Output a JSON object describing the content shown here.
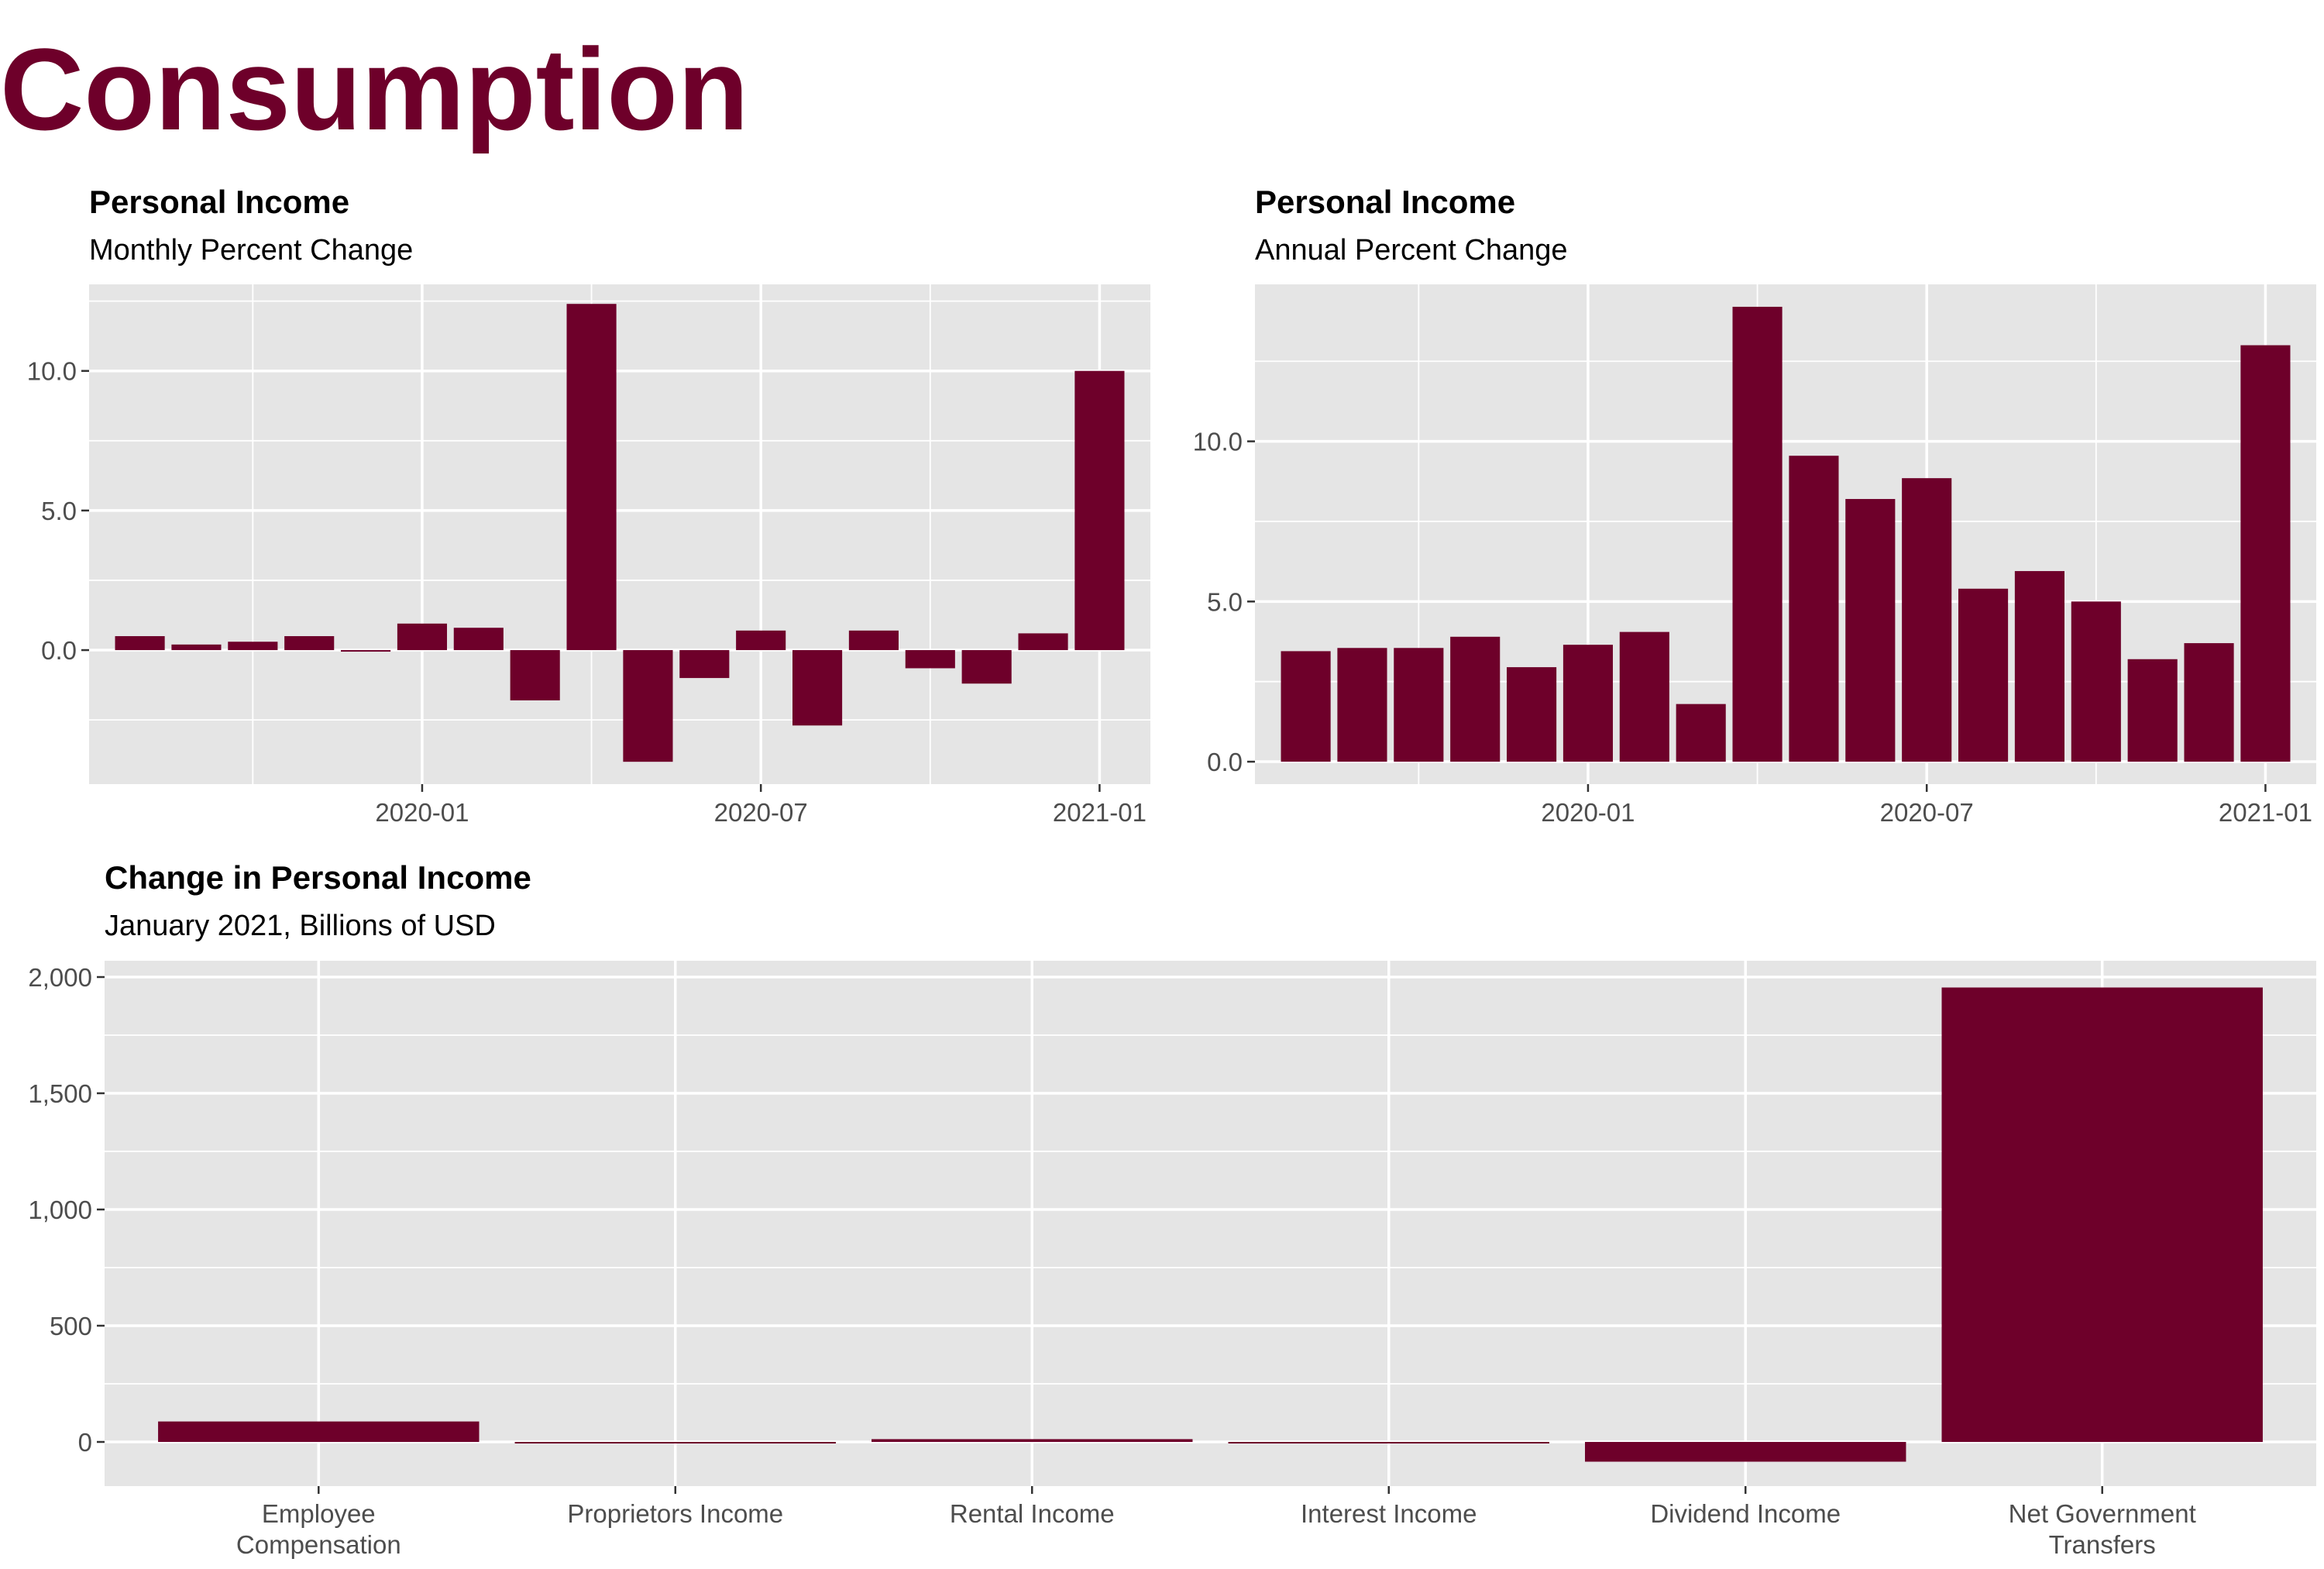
{
  "page_title": "Consumption",
  "colors": {
    "bar": "#6e002a",
    "panel": "#e5e5e5",
    "grid": "#ffffff",
    "tick_text": "#4d4d4d"
  },
  "chart_data": [
    {
      "type": "bar",
      "title": "Personal Income",
      "subtitle": "Monthly Percent Change",
      "x": [
        "2019-08",
        "2019-09",
        "2019-10",
        "2019-11",
        "2019-12",
        "2020-01",
        "2020-02",
        "2020-03",
        "2020-04",
        "2020-05",
        "2020-06",
        "2020-07",
        "2020-08",
        "2020-09",
        "2020-10",
        "2020-11",
        "2020-12",
        "2021-01"
      ],
      "values": [
        0.5,
        0.2,
        0.3,
        0.5,
        -0.05,
        0.95,
        0.8,
        -1.8,
        12.4,
        -4.0,
        -1.0,
        0.7,
        -2.7,
        0.7,
        -0.65,
        -1.2,
        0.6,
        10.0
      ],
      "x_tick_labels": [
        "2020-01",
        "2020-07",
        "2021-01"
      ],
      "y_tick_labels": [
        "0.0",
        "5.0",
        "10.0"
      ],
      "ylim": [
        -4.8,
        13.1
      ],
      "grid": true
    },
    {
      "type": "bar",
      "title": "Personal Income",
      "subtitle": "Annual Percent Change",
      "x": [
        "2019-08",
        "2019-09",
        "2019-10",
        "2019-11",
        "2019-12",
        "2020-01",
        "2020-02",
        "2020-03",
        "2020-04",
        "2020-05",
        "2020-06",
        "2020-07",
        "2020-08",
        "2020-09",
        "2020-10",
        "2020-11",
        "2020-12",
        "2021-01"
      ],
      "values": [
        3.45,
        3.55,
        3.55,
        3.9,
        2.95,
        3.65,
        4.05,
        1.8,
        14.2,
        9.55,
        8.2,
        8.85,
        5.4,
        5.95,
        5.0,
        3.2,
        3.7,
        13.0
      ],
      "x_tick_labels": [
        "2020-01",
        "2020-07",
        "2021-01"
      ],
      "y_tick_labels": [
        "0.0",
        "5.0",
        "10.0"
      ],
      "ylim": [
        -0.7,
        14.9
      ],
      "grid": true
    },
    {
      "type": "bar",
      "title": "Change in Personal Income",
      "subtitle": "January 2021, Billions of USD",
      "categories": [
        "Employee\nCompensation",
        "Proprietors Income",
        "Rental Income",
        "Interest Income",
        "Dividend Income",
        "Net Government\nTransfers"
      ],
      "values": [
        88,
        -3,
        12,
        0,
        -85,
        1955
      ],
      "y_tick_labels": [
        "0",
        "500",
        "1,000",
        "1,500",
        "2,000"
      ],
      "ylim": [
        -190,
        2070
      ],
      "grid": true
    }
  ]
}
